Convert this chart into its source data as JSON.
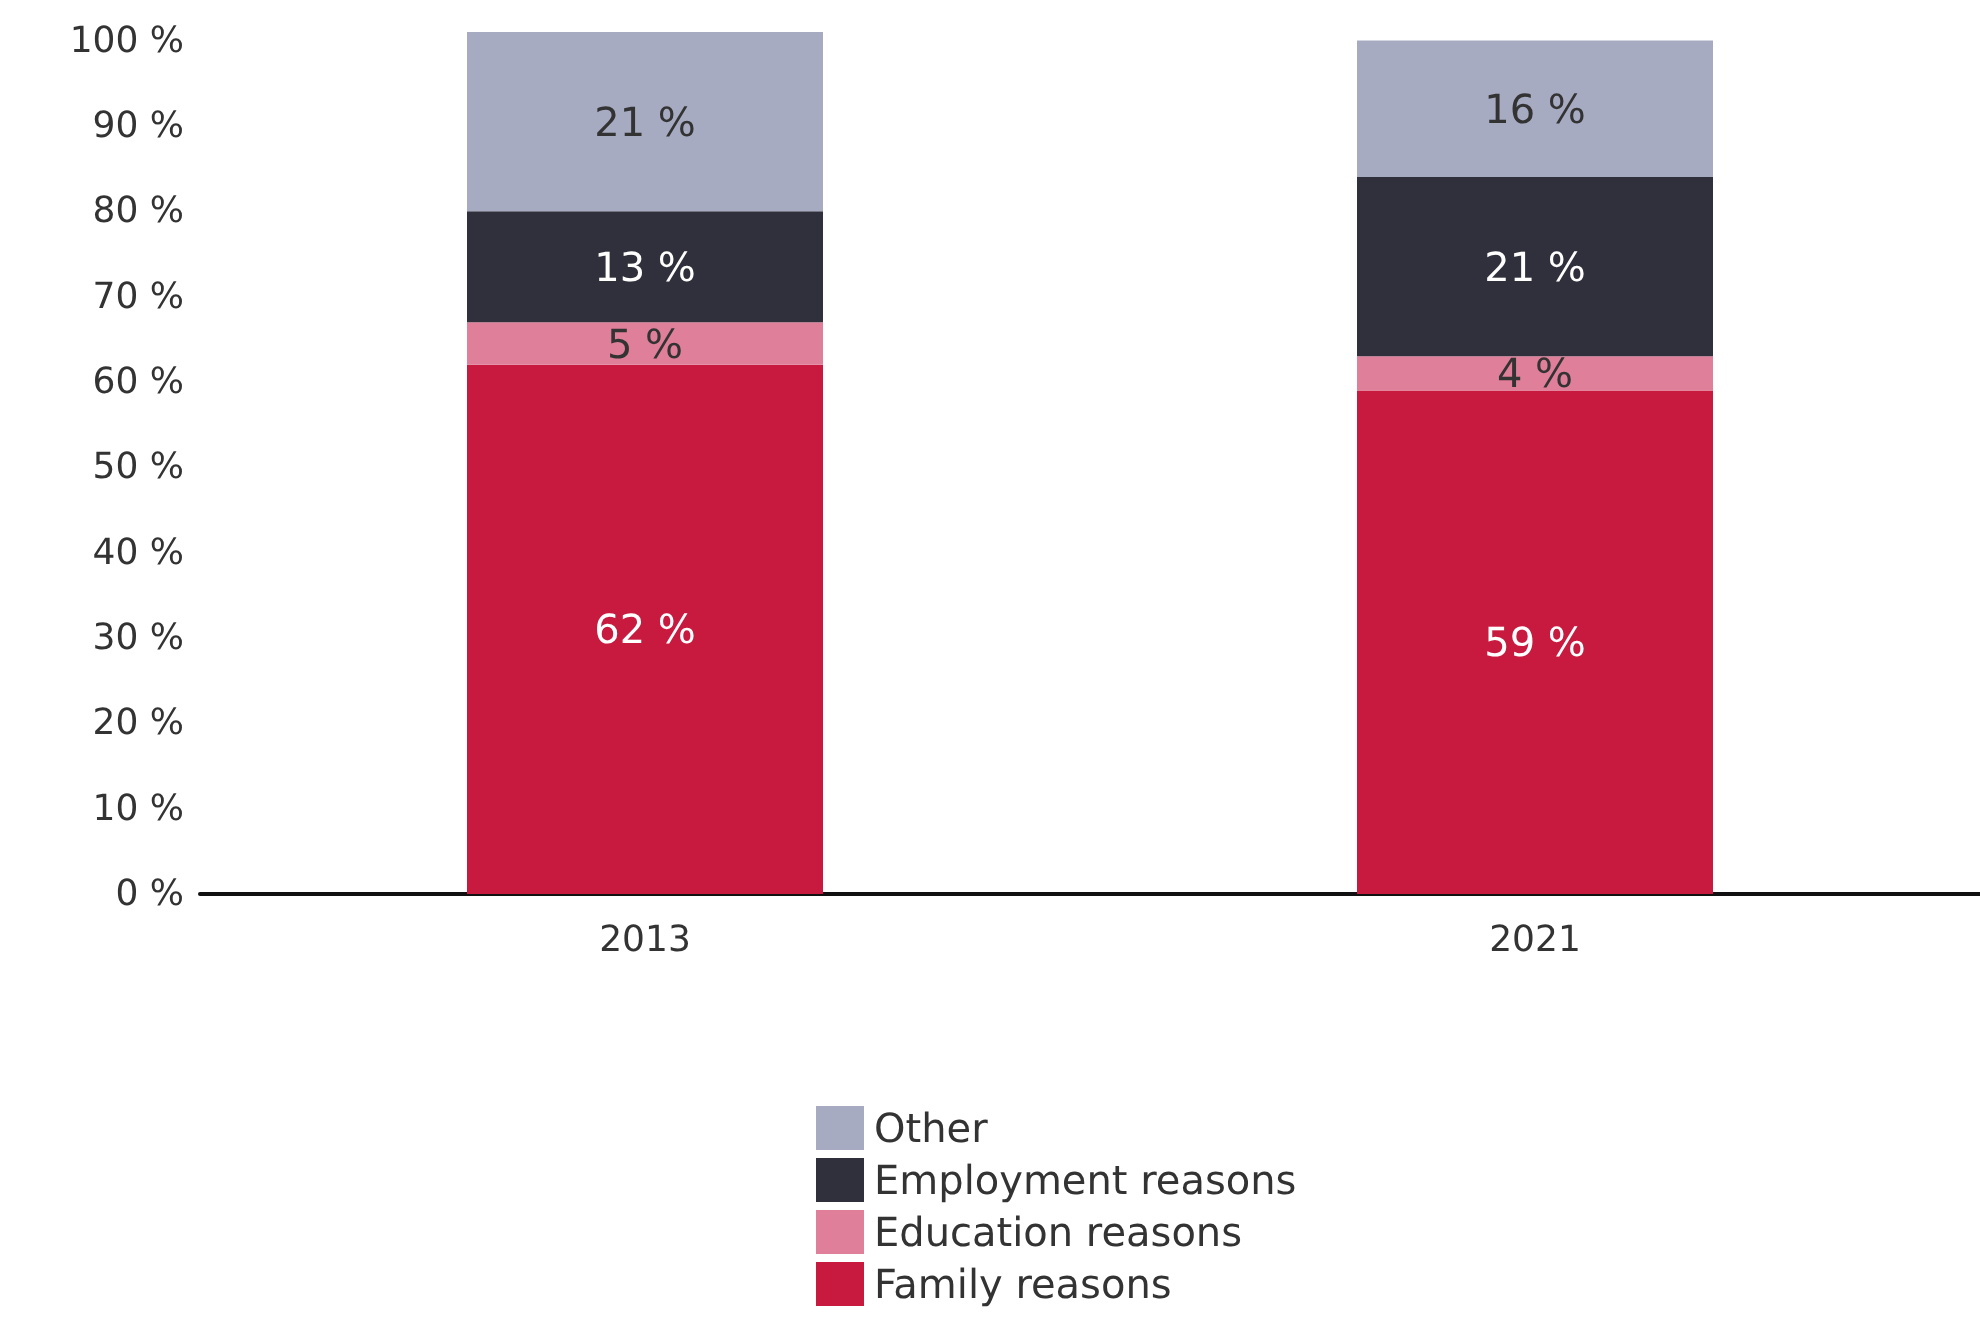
{
  "chart_data": {
    "type": "bar",
    "stacked": true,
    "categories": [
      "2013",
      "2021"
    ],
    "series": [
      {
        "name": "Family reasons",
        "color": "#c8193f",
        "values": [
          62,
          59
        ],
        "value_labels": [
          "62 %",
          "59 %"
        ]
      },
      {
        "name": "Education reasons",
        "color": "#e07f9a",
        "values": [
          5,
          4
        ],
        "value_labels": [
          "5 %",
          "4 %"
        ]
      },
      {
        "name": "Employment reasons",
        "color": "#30303d",
        "values": [
          13,
          21
        ],
        "value_labels": [
          "13 %",
          "21 %"
        ]
      },
      {
        "name": "Other",
        "color": "#a7abc2",
        "values": [
          21,
          16
        ],
        "value_labels": [
          "21 %",
          "16 %"
        ]
      }
    ],
    "ylim": [
      0,
      101
    ],
    "yticks": [
      {
        "value": 0,
        "label": "0 %"
      },
      {
        "value": 10,
        "label": "10 %"
      },
      {
        "value": 20,
        "label": "20 %"
      },
      {
        "value": 30,
        "label": "30 %"
      },
      {
        "value": 40,
        "label": "40 %"
      },
      {
        "value": 50,
        "label": "50 %"
      },
      {
        "value": 60,
        "label": "60 %"
      },
      {
        "value": 70,
        "label": "70 %"
      },
      {
        "value": 80,
        "label": "80 %"
      },
      {
        "value": 90,
        "label": "90 %"
      },
      {
        "value": 100,
        "label": "100 %"
      }
    ],
    "grid": false,
    "legend": "bottom"
  }
}
